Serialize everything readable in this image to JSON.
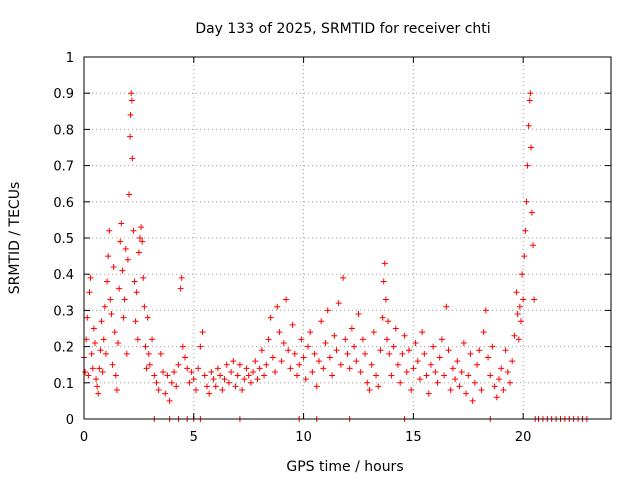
{
  "chart_data": {
    "type": "scatter",
    "title": "Day 133 of 2025, SRMTID for receiver chti",
    "xlabel": "GPS time / hours",
    "ylabel": "SRMTID / TECUs",
    "xlim": [
      0,
      24
    ],
    "ylim": [
      0,
      1
    ],
    "xticks": [
      0,
      5,
      10,
      15,
      20
    ],
    "xtick_labels": [
      "0",
      "5",
      "10",
      "15",
      "20"
    ],
    "yticks": [
      0,
      0.1,
      0.2,
      0.3,
      0.4,
      0.5,
      0.6,
      0.7,
      0.8,
      0.9,
      1
    ],
    "ytick_labels": [
      "0",
      "0.1",
      "0.2",
      "0.3",
      "0.4",
      "0.5",
      "0.6",
      "0.7",
      "0.8",
      "0.9",
      "1"
    ],
    "grid": true,
    "marker": "+",
    "color": "#ff0000",
    "series": [
      {
        "name": "SRMTID",
        "points": [
          [
            0.0,
            0.17
          ],
          [
            0.05,
            0.13
          ],
          [
            0.1,
            0.22
          ],
          [
            0.15,
            0.28
          ],
          [
            0.2,
            0.12
          ],
          [
            0.25,
            0.35
          ],
          [
            0.3,
            0.39
          ],
          [
            0.35,
            0.18
          ],
          [
            0.4,
            0.14
          ],
          [
            0.45,
            0.25
          ],
          [
            0.5,
            0.21
          ],
          [
            0.55,
            0.11
          ],
          [
            0.6,
            0.09
          ],
          [
            0.65,
            0.07
          ],
          [
            0.7,
            0.14
          ],
          [
            0.75,
            0.19
          ],
          [
            0.8,
            0.27
          ],
          [
            0.85,
            0.13
          ],
          [
            0.9,
            0.22
          ],
          [
            0.95,
            0.31
          ],
          [
            1.0,
            0.18
          ],
          [
            1.05,
            0.38
          ],
          [
            1.1,
            0.45
          ],
          [
            1.15,
            0.52
          ],
          [
            1.2,
            0.33
          ],
          [
            1.25,
            0.29
          ],
          [
            1.3,
            0.15
          ],
          [
            1.35,
            0.42
          ],
          [
            1.4,
            0.24
          ],
          [
            1.45,
            0.12
          ],
          [
            1.5,
            0.08
          ],
          [
            1.55,
            0.21
          ],
          [
            1.6,
            0.36
          ],
          [
            1.65,
            0.49
          ],
          [
            1.7,
            0.54
          ],
          [
            1.75,
            0.41
          ],
          [
            1.8,
            0.28
          ],
          [
            1.85,
            0.33
          ],
          [
            1.9,
            0.47
          ],
          [
            1.95,
            0.18
          ],
          [
            2.0,
            0.44
          ],
          [
            2.05,
            0.62
          ],
          [
            2.1,
            0.78
          ],
          [
            2.12,
            0.84
          ],
          [
            2.15,
            0.9
          ],
          [
            2.18,
            0.88
          ],
          [
            2.2,
            0.72
          ],
          [
            2.25,
            0.52
          ],
          [
            2.3,
            0.38
          ],
          [
            2.35,
            0.27
          ],
          [
            2.4,
            0.35
          ],
          [
            2.45,
            0.22
          ],
          [
            2.5,
            0.46
          ],
          [
            2.55,
            0.5
          ],
          [
            2.6,
            0.53
          ],
          [
            2.65,
            0.49
          ],
          [
            2.7,
            0.39
          ],
          [
            2.75,
            0.31
          ],
          [
            2.8,
            0.2
          ],
          [
            2.85,
            0.14
          ],
          [
            2.9,
            0.28
          ],
          [
            2.95,
            0.18
          ],
          [
            3.0,
            0.15
          ],
          [
            3.1,
            0.22
          ],
          [
            3.2,
            0.12
          ],
          [
            3.3,
            0.1
          ],
          [
            3.4,
            0.08
          ],
          [
            3.5,
            0.18
          ],
          [
            3.6,
            0.13
          ],
          [
            3.7,
            0.07
          ],
          [
            3.8,
            0.12
          ],
          [
            3.9,
            0.05
          ],
          [
            4.0,
            0.1
          ],
          [
            4.1,
            0.13
          ],
          [
            4.2,
            0.09
          ],
          [
            4.3,
            0.15
          ],
          [
            4.4,
            0.36
          ],
          [
            4.45,
            0.39
          ],
          [
            4.5,
            0.2
          ],
          [
            4.6,
            0.17
          ],
          [
            4.7,
            0.14
          ],
          [
            4.8,
            0.1
          ],
          [
            4.9,
            0.13
          ],
          [
            5.0,
            0.11
          ],
          [
            5.1,
            0.08
          ],
          [
            5.2,
            0.14
          ],
          [
            5.3,
            0.2
          ],
          [
            5.4,
            0.24
          ],
          [
            5.5,
            0.12
          ],
          [
            5.6,
            0.09
          ],
          [
            5.7,
            0.07
          ],
          [
            5.8,
            0.13
          ],
          [
            5.9,
            0.11
          ],
          [
            6.0,
            0.09
          ],
          [
            6.1,
            0.14
          ],
          [
            6.2,
            0.12
          ],
          [
            6.3,
            0.08
          ],
          [
            6.4,
            0.11
          ],
          [
            6.5,
            0.15
          ],
          [
            6.6,
            0.1
          ],
          [
            6.7,
            0.13
          ],
          [
            6.8,
            0.16
          ],
          [
            6.9,
            0.09
          ],
          [
            7.0,
            0.12
          ],
          [
            7.1,
            0.15
          ],
          [
            7.2,
            0.08
          ],
          [
            7.3,
            0.11
          ],
          [
            7.4,
            0.14
          ],
          [
            7.5,
            0.12
          ],
          [
            7.6,
            0.1
          ],
          [
            7.7,
            0.13
          ],
          [
            7.8,
            0.16
          ],
          [
            7.9,
            0.11
          ],
          [
            8.0,
            0.14
          ],
          [
            8.1,
            0.19
          ],
          [
            8.2,
            0.12
          ],
          [
            8.3,
            0.15
          ],
          [
            8.4,
            0.22
          ],
          [
            8.5,
            0.28
          ],
          [
            8.6,
            0.17
          ],
          [
            8.7,
            0.13
          ],
          [
            8.8,
            0.31
          ],
          [
            8.9,
            0.24
          ],
          [
            9.0,
            0.16
          ],
          [
            9.1,
            0.21
          ],
          [
            9.2,
            0.33
          ],
          [
            9.3,
            0.19
          ],
          [
            9.4,
            0.14
          ],
          [
            9.5,
            0.26
          ],
          [
            9.6,
            0.18
          ],
          [
            9.7,
            0.12
          ],
          [
            9.8,
            0.15
          ],
          [
            9.9,
            0.22
          ],
          [
            10.0,
            0.17
          ],
          [
            10.1,
            0.11
          ],
          [
            10.2,
            0.2
          ],
          [
            10.3,
            0.24
          ],
          [
            10.4,
            0.13
          ],
          [
            10.5,
            0.18
          ],
          [
            10.6,
            0.09
          ],
          [
            10.7,
            0.16
          ],
          [
            10.8,
            0.27
          ],
          [
            10.9,
            0.14
          ],
          [
            11.0,
            0.21
          ],
          [
            11.1,
            0.3
          ],
          [
            11.2,
            0.17
          ],
          [
            11.3,
            0.12
          ],
          [
            11.4,
            0.23
          ],
          [
            11.5,
            0.19
          ],
          [
            11.6,
            0.32
          ],
          [
            11.7,
            0.15
          ],
          [
            11.8,
            0.39
          ],
          [
            11.9,
            0.22
          ],
          [
            12.0,
            0.18
          ],
          [
            12.1,
            0.14
          ],
          [
            12.2,
            0.25
          ],
          [
            12.3,
            0.2
          ],
          [
            12.4,
            0.16
          ],
          [
            12.5,
            0.29
          ],
          [
            12.6,
            0.13
          ],
          [
            12.7,
            0.22
          ],
          [
            12.8,
            0.18
          ],
          [
            12.9,
            0.1
          ],
          [
            13.0,
            0.08
          ],
          [
            13.1,
            0.15
          ],
          [
            13.2,
            0.24
          ],
          [
            13.3,
            0.12
          ],
          [
            13.4,
            0.09
          ],
          [
            13.5,
            0.19
          ],
          [
            13.6,
            0.28
          ],
          [
            13.65,
            0.38
          ],
          [
            13.7,
            0.43
          ],
          [
            13.75,
            0.33
          ],
          [
            13.8,
            0.22
          ],
          [
            13.85,
            0.27
          ],
          [
            13.9,
            0.18
          ],
          [
            14.0,
            0.12
          ],
          [
            14.1,
            0.2
          ],
          [
            14.2,
            0.25
          ],
          [
            14.3,
            0.15
          ],
          [
            14.4,
            0.1
          ],
          [
            14.5,
            0.18
          ],
          [
            14.6,
            0.23
          ],
          [
            14.7,
            0.13
          ],
          [
            14.8,
            0.19
          ],
          [
            14.9,
            0.08
          ],
          [
            15.0,
            0.14
          ],
          [
            15.1,
            0.21
          ],
          [
            15.2,
            0.16
          ],
          [
            15.3,
            0.11
          ],
          [
            15.4,
            0.24
          ],
          [
            15.5,
            0.18
          ],
          [
            15.6,
            0.12
          ],
          [
            15.7,
            0.07
          ],
          [
            15.8,
            0.15
          ],
          [
            15.9,
            0.2
          ],
          [
            16.0,
            0.13
          ],
          [
            16.1,
            0.1
          ],
          [
            16.2,
            0.17
          ],
          [
            16.3,
            0.22
          ],
          [
            16.4,
            0.12
          ],
          [
            16.5,
            0.31
          ],
          [
            16.6,
            0.19
          ],
          [
            16.7,
            0.08
          ],
          [
            16.8,
            0.14
          ],
          [
            16.9,
            0.11
          ],
          [
            17.0,
            0.16
          ],
          [
            17.1,
            0.09
          ],
          [
            17.2,
            0.13
          ],
          [
            17.3,
            0.21
          ],
          [
            17.4,
            0.07
          ],
          [
            17.5,
            0.12
          ],
          [
            17.6,
            0.18
          ],
          [
            17.7,
            0.05
          ],
          [
            17.8,
            0.1
          ],
          [
            17.9,
            0.15
          ],
          [
            18.0,
            0.19
          ],
          [
            18.1,
            0.08
          ],
          [
            18.2,
            0.24
          ],
          [
            18.3,
            0.3
          ],
          [
            18.4,
            0.17
          ],
          [
            18.5,
            0.12
          ],
          [
            18.6,
            0.2
          ],
          [
            18.7,
            0.09
          ],
          [
            18.8,
            0.06
          ],
          [
            18.9,
            0.11
          ],
          [
            19.0,
            0.14
          ],
          [
            19.1,
            0.08
          ],
          [
            19.2,
            0.19
          ],
          [
            19.3,
            0.13
          ],
          [
            19.4,
            0.1
          ],
          [
            19.5,
            0.16
          ],
          [
            19.6,
            0.23
          ],
          [
            19.7,
            0.35
          ],
          [
            19.75,
            0.29
          ],
          [
            19.8,
            0.22
          ],
          [
            19.85,
            0.31
          ],
          [
            19.9,
            0.27
          ],
          [
            19.95,
            0.4
          ],
          [
            20.0,
            0.33
          ],
          [
            20.05,
            0.45
          ],
          [
            20.1,
            0.52
          ],
          [
            20.15,
            0.6
          ],
          [
            20.2,
            0.7
          ],
          [
            20.25,
            0.81
          ],
          [
            20.3,
            0.88
          ],
          [
            20.33,
            0.9
          ],
          [
            20.36,
            0.75
          ],
          [
            20.4,
            0.57
          ],
          [
            20.45,
            0.48
          ],
          [
            20.5,
            0.33
          ],
          [
            20.55,
            0.0
          ],
          [
            20.7,
            0.0
          ],
          [
            20.9,
            0.0
          ],
          [
            21.1,
            0.0
          ],
          [
            21.3,
            0.0
          ],
          [
            21.5,
            0.0
          ],
          [
            21.7,
            0.0
          ],
          [
            21.9,
            0.0
          ],
          [
            22.1,
            0.0
          ],
          [
            22.3,
            0.0
          ],
          [
            22.5,
            0.0
          ],
          [
            22.7,
            0.0
          ],
          [
            22.9,
            0.0
          ],
          [
            3.2,
            0.0
          ],
          [
            3.9,
            0.0
          ],
          [
            4.3,
            0.0
          ],
          [
            4.7,
            0.0
          ],
          [
            5.0,
            0.0
          ],
          [
            5.3,
            0.0
          ],
          [
            7.1,
            0.0
          ],
          [
            9.8,
            0.0
          ],
          [
            10.6,
            0.0
          ],
          [
            12.1,
            0.0
          ],
          [
            14.6,
            0.0
          ],
          [
            18.5,
            0.0
          ]
        ]
      }
    ]
  }
}
